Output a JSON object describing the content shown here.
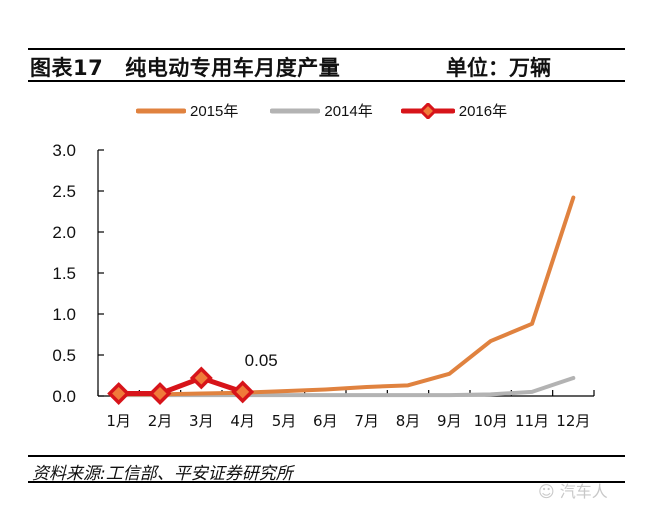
{
  "header": {
    "figure_label": "图表17",
    "title": "纯电动专用车月度产量",
    "unit": "单位：万辆"
  },
  "legend": [
    {
      "label": "2015年",
      "color": "#E0823F"
    },
    {
      "label": "2014年",
      "color": "#B3B3B3"
    },
    {
      "label": "2016年",
      "color": "#D7141A"
    }
  ],
  "annotation": "0.05",
  "footer": {
    "source": "资料来源:工信部、平安证券研究所",
    "watermark": "汽车人"
  },
  "chart_data": {
    "type": "line",
    "title": "纯电动专用车月度产量",
    "xlabel": "",
    "ylabel": "单位：万辆",
    "ylim": [
      0,
      3.0
    ],
    "yticks": [
      "0.0",
      "0.5",
      "1.0",
      "1.5",
      "2.0",
      "2.5",
      "3.0"
    ],
    "grid": false,
    "legend_position": "top",
    "categories": [
      "1月",
      "2月",
      "3月",
      "4月",
      "5月",
      "6月",
      "7月",
      "8月",
      "9月",
      "10月",
      "11月",
      "12月"
    ],
    "series": [
      {
        "name": "2015年",
        "color": "#E0823F",
        "values": [
          0.02,
          0.02,
          0.03,
          0.04,
          0.06,
          0.08,
          0.11,
          0.13,
          0.27,
          0.67,
          0.88,
          2.42
        ]
      },
      {
        "name": "2014年",
        "color": "#B3B3B3",
        "values": [
          0.01,
          0.01,
          0.01,
          0.01,
          0.01,
          0.01,
          0.01,
          0.01,
          0.01,
          0.02,
          0.05,
          0.22
        ]
      },
      {
        "name": "2016年",
        "color": "#D7141A",
        "marker": "diamond",
        "values": [
          0.03,
          0.03,
          0.22,
          0.05
        ]
      }
    ],
    "annotations": [
      {
        "x": "4月",
        "text": "0.05"
      }
    ]
  }
}
